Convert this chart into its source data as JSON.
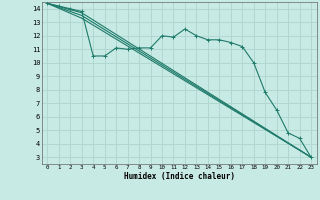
{
  "xlabel": "Humidex (Indice chaleur)",
  "xlim": [
    -0.5,
    23.5
  ],
  "ylim": [
    2.5,
    14.5
  ],
  "xticks": [
    0,
    1,
    2,
    3,
    4,
    5,
    6,
    7,
    8,
    9,
    10,
    11,
    12,
    13,
    14,
    15,
    16,
    17,
    18,
    19,
    20,
    21,
    22,
    23
  ],
  "yticks": [
    3,
    4,
    5,
    6,
    7,
    8,
    9,
    10,
    11,
    12,
    13,
    14
  ],
  "bg_color": "#c8eae4",
  "grid_color": "#b0d8d0",
  "line_color": "#1e7a6a",
  "lines": [
    {
      "x": [
        0,
        1,
        2,
        3,
        4,
        5,
        6,
        7,
        8,
        9,
        10,
        11,
        12,
        13,
        14,
        15,
        16,
        17,
        18,
        19,
        20,
        21,
        22,
        23
      ],
      "y": [
        14.4,
        14.2,
        14.0,
        13.8,
        10.5,
        10.5,
        11.1,
        11.0,
        11.1,
        11.1,
        12.0,
        11.9,
        12.5,
        12.0,
        11.7,
        11.7,
        11.5,
        11.2,
        10.0,
        7.8,
        6.5,
        4.8,
        4.4,
        3.0
      ],
      "marker": true
    },
    {
      "x": [
        0,
        3,
        23
      ],
      "y": [
        14.4,
        13.7,
        3.0
      ],
      "marker": false
    },
    {
      "x": [
        0,
        3,
        23
      ],
      "y": [
        14.4,
        13.5,
        3.0
      ],
      "marker": false
    },
    {
      "x": [
        0,
        3,
        23
      ],
      "y": [
        14.4,
        13.3,
        3.0
      ],
      "marker": false
    }
  ]
}
